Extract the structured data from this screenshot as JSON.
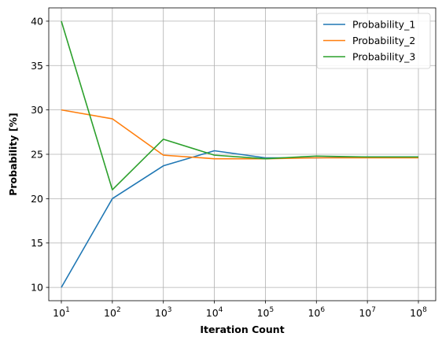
{
  "chart_data": {
    "type": "line",
    "x_scale": "log",
    "x": [
      10,
      100,
      1000,
      10000,
      100000,
      1000000,
      10000000,
      100000000
    ],
    "x_tick_labels": [
      {
        "base": "10",
        "exp": "1"
      },
      {
        "base": "10",
        "exp": "2"
      },
      {
        "base": "10",
        "exp": "3"
      },
      {
        "base": "10",
        "exp": "4"
      },
      {
        "base": "10",
        "exp": "5"
      },
      {
        "base": "10",
        "exp": "6"
      },
      {
        "base": "10",
        "exp": "7"
      },
      {
        "base": "10",
        "exp": "8"
      }
    ],
    "y_ticks": [
      10,
      15,
      20,
      25,
      30,
      35,
      40
    ],
    "ylim": [
      8.5,
      41.5
    ],
    "xlabel": "Iteration Count",
    "ylabel": "Probability [%]",
    "grid": true,
    "legend_position": "top-right",
    "series": [
      {
        "name": "Probability_1",
        "color": "#1f77b4",
        "values": [
          10.0,
          20.0,
          23.7,
          25.4,
          24.6,
          24.6,
          24.7,
          24.7
        ]
      },
      {
        "name": "Probability_2",
        "color": "#ff7f0e",
        "values": [
          30.0,
          29.0,
          24.9,
          24.5,
          24.5,
          24.6,
          24.6,
          24.6
        ]
      },
      {
        "name": "Probability_3",
        "color": "#2ca02c",
        "values": [
          40.0,
          21.0,
          26.7,
          24.9,
          24.5,
          24.8,
          24.7,
          24.7
        ]
      }
    ]
  }
}
